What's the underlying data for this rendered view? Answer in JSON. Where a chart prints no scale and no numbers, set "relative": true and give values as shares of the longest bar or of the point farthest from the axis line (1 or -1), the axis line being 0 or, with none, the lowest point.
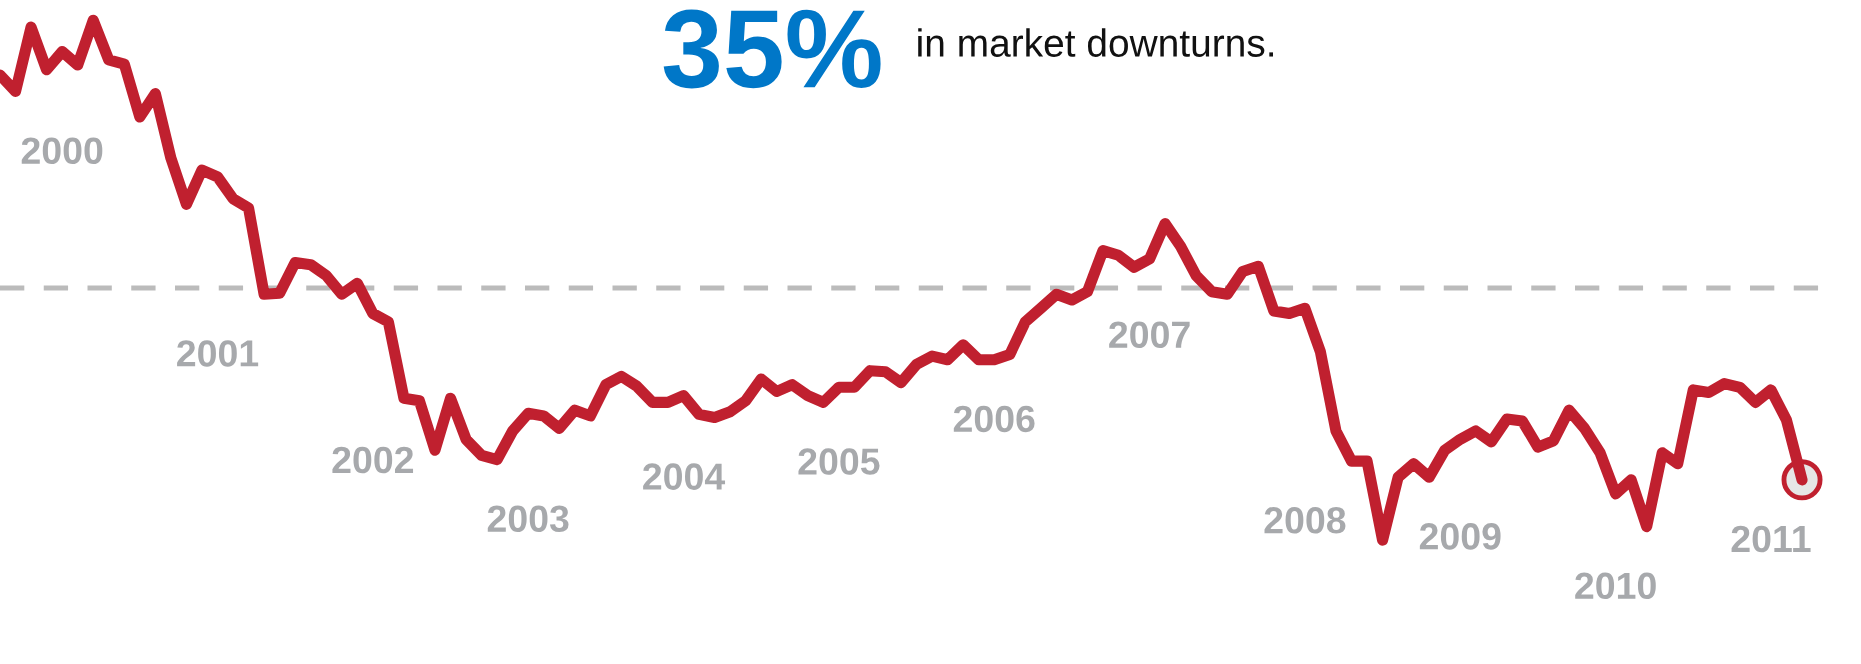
{
  "chart_data": {
    "type": "line",
    "relative": true,
    "line_style": "solid",
    "annotations": [
      "35%",
      "in market downturns.",
      "2000",
      "2001",
      "2002",
      "2003",
      "2004",
      "2005",
      "2006",
      "2007",
      "2008",
      "2009",
      "2010",
      "2011"
    ],
    "ref_lines": [
      {
        "axis": "y",
        "value": 0.485,
        "label": null,
        "color": "#bbbbbb",
        "line_style": "dashed"
      }
    ],
    "categories": [
      null,
      null,
      null,
      null,
      null,
      null,
      null,
      null,
      null,
      null,
      null,
      null,
      null,
      null,
      null,
      null,
      null,
      null,
      null,
      null,
      null,
      null,
      null,
      null,
      null,
      null,
      null,
      null,
      null,
      null,
      null,
      null,
      null,
      null,
      null,
      null,
      null,
      null,
      null,
      null,
      null,
      null,
      null,
      null,
      null,
      null,
      null,
      null,
      null,
      null,
      null,
      null,
      null,
      null,
      null,
      null,
      null,
      null,
      null,
      null,
      null,
      null,
      null,
      null,
      null,
      null,
      null,
      null,
      null,
      null,
      null,
      null,
      null,
      null,
      null,
      null,
      null,
      null,
      null,
      null,
      null,
      null,
      null,
      null,
      null,
      null,
      null,
      null,
      null,
      null,
      null,
      null,
      null,
      null,
      null,
      null,
      null,
      null,
      null,
      null,
      null,
      null,
      null,
      null,
      null,
      null,
      null,
      null,
      null,
      null,
      null,
      null,
      null,
      null,
      null,
      null,
      null
    ],
    "series": [
      {
        "color": "#c0202f",
        "values": [
          0.895,
          0.863,
          0.987,
          0.905,
          0.94,
          0.914,
          1.0,
          0.924,
          0.916,
          0.814,
          0.859,
          0.735,
          0.646,
          0.712,
          0.699,
          0.657,
          0.639,
          0.473,
          0.475,
          0.534,
          0.53,
          0.509,
          0.473,
          0.494,
          0.436,
          0.42,
          0.273,
          0.268,
          0.173,
          0.273,
          0.194,
          0.163,
          0.155,
          0.21,
          0.244,
          0.239,
          0.215,
          0.25,
          0.239,
          0.299,
          0.315,
          0.296,
          0.265,
          0.265,
          0.278,
          0.242,
          0.236,
          0.247,
          0.268,
          0.31,
          0.286,
          0.299,
          0.278,
          0.265,
          0.294,
          0.294,
          0.326,
          0.324,
          0.303,
          0.338,
          0.354,
          0.347,
          0.376,
          0.347,
          0.347,
          0.357,
          0.42,
          0.446,
          0.473,
          0.462,
          0.478,
          0.557,
          0.548,
          0.525,
          0.541,
          0.609,
          0.565,
          0.509,
          0.478,
          0.473,
          0.517,
          0.527,
          0.441,
          0.436,
          0.446,
          0.362,
          0.21,
          0.152,
          0.152,
          0.0,
          0.121,
          0.147,
          0.121,
          0.173,
          0.194,
          0.21,
          0.189,
          0.233,
          0.229,
          0.179,
          0.191,
          0.25,
          0.215,
          0.168,
          0.089,
          0.116,
          0.026,
          0.168,
          0.147,
          0.289,
          0.284,
          0.301,
          0.294,
          0.265,
          0.289,
          0.231,
          0.116
        ]
      }
    ]
  }
}
